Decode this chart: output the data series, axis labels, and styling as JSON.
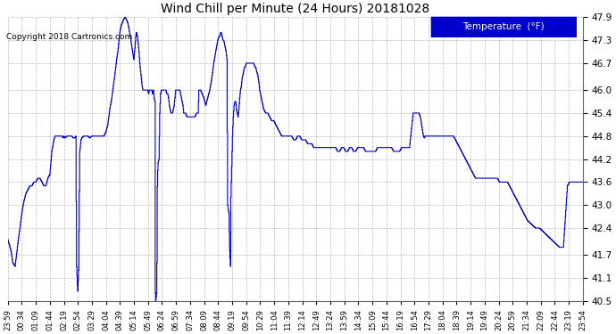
{
  "title": "Wind Chill per Minute (24 Hours) 20181028",
  "copyright": "Copyright 2018 Cartronics.com",
  "legend_label": "Temperature  (°F)",
  "line_color": "#0000cc",
  "background_color": "#ffffff",
  "plot_bg_color": "#ffffff",
  "grid_color": "#aaaaaa",
  "legend_bg": "#0000cc",
  "legend_fg": "#ffffff",
  "ylim": [
    40.5,
    47.9
  ],
  "yticks": [
    40.5,
    41.1,
    41.7,
    42.4,
    43.0,
    43.6,
    44.2,
    44.8,
    45.4,
    46.0,
    46.7,
    47.3,
    47.9
  ],
  "xtick_labels": [
    "23:59",
    "00:34",
    "01:09",
    "01:44",
    "02:19",
    "02:54",
    "03:29",
    "04:04",
    "04:39",
    "05:14",
    "05:49",
    "06:24",
    "06:59",
    "07:34",
    "08:09",
    "08:44",
    "09:19",
    "09:54",
    "10:29",
    "11:04",
    "11:39",
    "12:14",
    "12:49",
    "13:24",
    "13:59",
    "14:34",
    "15:09",
    "15:44",
    "16:19",
    "16:54",
    "17:29",
    "18:04",
    "18:39",
    "19:14",
    "19:49",
    "20:24",
    "20:59",
    "21:34",
    "22:09",
    "22:44",
    "23:19",
    "23:54"
  ],
  "keypoints": [
    [
      0,
      42.1
    ],
    [
      8,
      41.8
    ],
    [
      12,
      41.5
    ],
    [
      18,
      41.4
    ],
    [
      25,
      42.0
    ],
    [
      30,
      42.4
    ],
    [
      35,
      42.8
    ],
    [
      40,
      43.1
    ],
    [
      45,
      43.3
    ],
    [
      50,
      43.4
    ],
    [
      55,
      43.5
    ],
    [
      60,
      43.5
    ],
    [
      65,
      43.6
    ],
    [
      70,
      43.6
    ],
    [
      75,
      43.7
    ],
    [
      80,
      43.7
    ],
    [
      85,
      43.6
    ],
    [
      90,
      43.5
    ],
    [
      95,
      43.5
    ],
    [
      100,
      43.7
    ],
    [
      105,
      43.8
    ],
    [
      110,
      44.4
    ],
    [
      115,
      44.7
    ],
    [
      118,
      44.8
    ],
    [
      120,
      44.8
    ],
    [
      125,
      44.8
    ],
    [
      130,
      44.8
    ],
    [
      135,
      44.8
    ],
    [
      138,
      44.75
    ],
    [
      140,
      44.8
    ],
    [
      143,
      44.75
    ],
    [
      148,
      44.8
    ],
    [
      155,
      44.8
    ],
    [
      160,
      44.8
    ],
    [
      163,
      44.75
    ],
    [
      167,
      44.75
    ],
    [
      170,
      44.8
    ],
    [
      172,
      41.4
    ],
    [
      174,
      40.9
    ],
    [
      175,
      40.75
    ],
    [
      177,
      41.3
    ],
    [
      180,
      44.4
    ],
    [
      183,
      44.7
    ],
    [
      185,
      44.75
    ],
    [
      190,
      44.8
    ],
    [
      195,
      44.8
    ],
    [
      200,
      44.8
    ],
    [
      205,
      44.75
    ],
    [
      210,
      44.8
    ],
    [
      215,
      44.8
    ],
    [
      220,
      44.8
    ],
    [
      225,
      44.8
    ],
    [
      230,
      44.8
    ],
    [
      235,
      44.8
    ],
    [
      240,
      44.8
    ],
    [
      245,
      44.9
    ],
    [
      250,
      45.1
    ],
    [
      255,
      45.5
    ],
    [
      260,
      45.8
    ],
    [
      265,
      46.2
    ],
    [
      270,
      46.6
    ],
    [
      272,
      46.8
    ],
    [
      275,
      47.0
    ],
    [
      278,
      47.3
    ],
    [
      280,
      47.5
    ],
    [
      282,
      47.6
    ],
    [
      284,
      47.7
    ],
    [
      286,
      47.75
    ],
    [
      288,
      47.8
    ],
    [
      290,
      47.85
    ],
    [
      292,
      47.9
    ],
    [
      294,
      47.9
    ],
    [
      296,
      47.85
    ],
    [
      298,
      47.8
    ],
    [
      300,
      47.75
    ],
    [
      303,
      47.6
    ],
    [
      306,
      47.4
    ],
    [
      309,
      47.2
    ],
    [
      312,
      47.0
    ],
    [
      315,
      46.8
    ],
    [
      318,
      47.1
    ],
    [
      320,
      47.4
    ],
    [
      322,
      47.5
    ],
    [
      324,
      47.4
    ],
    [
      326,
      47.2
    ],
    [
      328,
      47.0
    ],
    [
      330,
      46.7
    ],
    [
      332,
      46.5
    ],
    [
      334,
      46.3
    ],
    [
      336,
      46.1
    ],
    [
      338,
      46.0
    ],
    [
      340,
      46.0
    ],
    [
      344,
      46.0
    ],
    [
      348,
      46.0
    ],
    [
      350,
      46.0
    ],
    [
      352,
      45.9
    ],
    [
      354,
      46.0
    ],
    [
      356,
      46.0
    ],
    [
      360,
      46.0
    ],
    [
      362,
      45.9
    ],
    [
      364,
      46.0
    ],
    [
      366,
      45.8
    ],
    [
      368,
      45.7
    ],
    [
      369,
      40.7
    ],
    [
      370,
      40.5
    ],
    [
      371,
      40.6
    ],
    [
      372,
      40.7
    ],
    [
      373,
      41.5
    ],
    [
      374,
      43.5
    ],
    [
      375,
      43.9
    ],
    [
      376,
      44.1
    ],
    [
      378,
      44.2
    ],
    [
      380,
      45.4
    ],
    [
      382,
      45.9
    ],
    [
      384,
      46.0
    ],
    [
      386,
      46.0
    ],
    [
      388,
      46.0
    ],
    [
      390,
      46.0
    ],
    [
      395,
      46.0
    ],
    [
      398,
      45.9
    ],
    [
      400,
      45.9
    ],
    [
      402,
      45.8
    ],
    [
      404,
      45.6
    ],
    [
      406,
      45.5
    ],
    [
      408,
      45.4
    ],
    [
      410,
      45.4
    ],
    [
      412,
      45.4
    ],
    [
      414,
      45.5
    ],
    [
      416,
      45.6
    ],
    [
      418,
      45.8
    ],
    [
      420,
      46.0
    ],
    [
      422,
      46.0
    ],
    [
      424,
      46.0
    ],
    [
      426,
      46.0
    ],
    [
      428,
      46.0
    ],
    [
      430,
      46.0
    ],
    [
      432,
      45.9
    ],
    [
      434,
      45.8
    ],
    [
      436,
      45.7
    ],
    [
      438,
      45.6
    ],
    [
      440,
      45.4
    ],
    [
      444,
      45.4
    ],
    [
      448,
      45.3
    ],
    [
      452,
      45.3
    ],
    [
      456,
      45.3
    ],
    [
      460,
      45.3
    ],
    [
      464,
      45.3
    ],
    [
      468,
      45.3
    ],
    [
      472,
      45.4
    ],
    [
      476,
      45.4
    ],
    [
      478,
      46.0
    ],
    [
      482,
      46.0
    ],
    [
      486,
      45.9
    ],
    [
      490,
      45.8
    ],
    [
      495,
      45.6
    ],
    [
      500,
      45.8
    ],
    [
      505,
      46.0
    ],
    [
      510,
      46.3
    ],
    [
      515,
      46.7
    ],
    [
      520,
      47.0
    ],
    [
      525,
      47.3
    ],
    [
      528,
      47.4
    ],
    [
      530,
      47.4
    ],
    [
      532,
      47.5
    ],
    [
      534,
      47.5
    ],
    [
      536,
      47.4
    ],
    [
      538,
      47.3
    ],
    [
      540,
      47.3
    ],
    [
      542,
      47.2
    ],
    [
      544,
      47.1
    ],
    [
      546,
      47.0
    ],
    [
      548,
      46.8
    ],
    [
      550,
      43.0
    ],
    [
      551,
      42.9
    ],
    [
      553,
      42.8
    ],
    [
      555,
      41.8
    ],
    [
      556,
      41.6
    ],
    [
      557,
      41.4
    ],
    [
      558,
      43.2
    ],
    [
      560,
      44.0
    ],
    [
      562,
      44.8
    ],
    [
      564,
      45.3
    ],
    [
      566,
      45.6
    ],
    [
      568,
      45.7
    ],
    [
      570,
      45.7
    ],
    [
      572,
      45.5
    ],
    [
      574,
      45.4
    ],
    [
      576,
      45.3
    ],
    [
      578,
      45.5
    ],
    [
      580,
      45.8
    ],
    [
      582,
      46.0
    ],
    [
      584,
      46.1
    ],
    [
      586,
      46.3
    ],
    [
      588,
      46.4
    ],
    [
      590,
      46.5
    ],
    [
      592,
      46.6
    ],
    [
      594,
      46.6
    ],
    [
      596,
      46.7
    ],
    [
      598,
      46.7
    ],
    [
      600,
      46.7
    ],
    [
      605,
      46.7
    ],
    [
      610,
      46.7
    ],
    [
      615,
      46.7
    ],
    [
      618,
      46.6
    ],
    [
      620,
      46.6
    ],
    [
      622,
      46.5
    ],
    [
      625,
      46.4
    ],
    [
      628,
      46.2
    ],
    [
      630,
      46.0
    ],
    [
      632,
      45.9
    ],
    [
      634,
      45.8
    ],
    [
      636,
      45.7
    ],
    [
      638,
      45.6
    ],
    [
      640,
      45.5
    ],
    [
      645,
      45.4
    ],
    [
      650,
      45.4
    ],
    [
      655,
      45.3
    ],
    [
      660,
      45.2
    ],
    [
      665,
      45.2
    ],
    [
      670,
      45.1
    ],
    [
      675,
      45.0
    ],
    [
      680,
      44.9
    ],
    [
      685,
      44.8
    ],
    [
      690,
      44.8
    ],
    [
      695,
      44.8
    ],
    [
      700,
      44.8
    ],
    [
      705,
      44.8
    ],
    [
      710,
      44.8
    ],
    [
      715,
      44.7
    ],
    [
      720,
      44.7
    ],
    [
      725,
      44.8
    ],
    [
      730,
      44.8
    ],
    [
      735,
      44.7
    ],
    [
      740,
      44.7
    ],
    [
      745,
      44.7
    ],
    [
      750,
      44.6
    ],
    [
      755,
      44.6
    ],
    [
      760,
      44.6
    ],
    [
      765,
      44.5
    ],
    [
      770,
      44.5
    ],
    [
      775,
      44.5
    ],
    [
      780,
      44.5
    ],
    [
      785,
      44.5
    ],
    [
      790,
      44.5
    ],
    [
      795,
      44.5
    ],
    [
      800,
      44.5
    ],
    [
      805,
      44.5
    ],
    [
      810,
      44.5
    ],
    [
      815,
      44.5
    ],
    [
      820,
      44.5
    ],
    [
      825,
      44.4
    ],
    [
      830,
      44.4
    ],
    [
      835,
      44.5
    ],
    [
      840,
      44.5
    ],
    [
      845,
      44.4
    ],
    [
      850,
      44.4
    ],
    [
      855,
      44.5
    ],
    [
      860,
      44.5
    ],
    [
      865,
      44.4
    ],
    [
      870,
      44.4
    ],
    [
      875,
      44.5
    ],
    [
      880,
      44.5
    ],
    [
      885,
      44.5
    ],
    [
      890,
      44.5
    ],
    [
      895,
      44.4
    ],
    [
      900,
      44.4
    ],
    [
      905,
      44.4
    ],
    [
      910,
      44.4
    ],
    [
      915,
      44.4
    ],
    [
      920,
      44.4
    ],
    [
      925,
      44.5
    ],
    [
      930,
      44.5
    ],
    [
      935,
      44.5
    ],
    [
      940,
      44.5
    ],
    [
      945,
      44.5
    ],
    [
      950,
      44.5
    ],
    [
      955,
      44.5
    ],
    [
      960,
      44.5
    ],
    [
      965,
      44.4
    ],
    [
      970,
      44.4
    ],
    [
      975,
      44.4
    ],
    [
      980,
      44.4
    ],
    [
      985,
      44.5
    ],
    [
      990,
      44.5
    ],
    [
      995,
      44.5
    ],
    [
      1000,
      44.5
    ],
    [
      1005,
      44.5
    ],
    [
      1008,
      44.8
    ],
    [
      1010,
      45.0
    ],
    [
      1012,
      45.2
    ],
    [
      1014,
      45.4
    ],
    [
      1016,
      45.4
    ],
    [
      1018,
      45.4
    ],
    [
      1020,
      45.4
    ],
    [
      1022,
      45.4
    ],
    [
      1025,
      45.4
    ],
    [
      1028,
      45.4
    ],
    [
      1032,
      45.3
    ],
    [
      1035,
      45.1
    ],
    [
      1038,
      44.9
    ],
    [
      1040,
      44.8
    ],
    [
      1042,
      44.75
    ],
    [
      1044,
      44.8
    ],
    [
      1048,
      44.8
    ],
    [
      1052,
      44.8
    ],
    [
      1056,
      44.8
    ],
    [
      1060,
      44.8
    ],
    [
      1064,
      44.8
    ],
    [
      1068,
      44.8
    ],
    [
      1072,
      44.8
    ],
    [
      1076,
      44.8
    ],
    [
      1080,
      44.8
    ],
    [
      1085,
      44.8
    ],
    [
      1090,
      44.8
    ],
    [
      1095,
      44.8
    ],
    [
      1100,
      44.8
    ],
    [
      1105,
      44.8
    ],
    [
      1110,
      44.8
    ],
    [
      1115,
      44.8
    ],
    [
      1120,
      44.7
    ],
    [
      1125,
      44.6
    ],
    [
      1130,
      44.5
    ],
    [
      1135,
      44.4
    ],
    [
      1140,
      44.3
    ],
    [
      1145,
      44.2
    ],
    [
      1150,
      44.1
    ],
    [
      1155,
      44.0
    ],
    [
      1160,
      43.9
    ],
    [
      1165,
      43.8
    ],
    [
      1170,
      43.7
    ],
    [
      1175,
      43.7
    ],
    [
      1180,
      43.7
    ],
    [
      1185,
      43.7
    ],
    [
      1190,
      43.7
    ],
    [
      1195,
      43.7
    ],
    [
      1200,
      43.7
    ],
    [
      1205,
      43.7
    ],
    [
      1210,
      43.7
    ],
    [
      1215,
      43.7
    ],
    [
      1220,
      43.7
    ],
    [
      1225,
      43.7
    ],
    [
      1230,
      43.6
    ],
    [
      1235,
      43.6
    ],
    [
      1240,
      43.6
    ],
    [
      1245,
      43.6
    ],
    [
      1250,
      43.6
    ],
    [
      1255,
      43.5
    ],
    [
      1260,
      43.4
    ],
    [
      1265,
      43.3
    ],
    [
      1270,
      43.2
    ],
    [
      1275,
      43.1
    ],
    [
      1280,
      43.0
    ],
    [
      1285,
      42.9
    ],
    [
      1290,
      42.8
    ],
    [
      1295,
      42.7
    ],
    [
      1300,
      42.6
    ],
    [
      1310,
      42.5
    ],
    [
      1320,
      42.4
    ],
    [
      1330,
      42.4
    ],
    [
      1340,
      42.3
    ],
    [
      1350,
      42.2
    ],
    [
      1360,
      42.1
    ],
    [
      1370,
      42.0
    ],
    [
      1380,
      41.9
    ],
    [
      1390,
      41.9
    ],
    [
      1400,
      43.5
    ],
    [
      1405,
      43.6
    ],
    [
      1410,
      43.6
    ],
    [
      1415,
      43.6
    ],
    [
      1420,
      43.6
    ],
    [
      1430,
      43.6
    ],
    [
      1435,
      43.6
    ],
    [
      1439,
      43.6
    ]
  ]
}
